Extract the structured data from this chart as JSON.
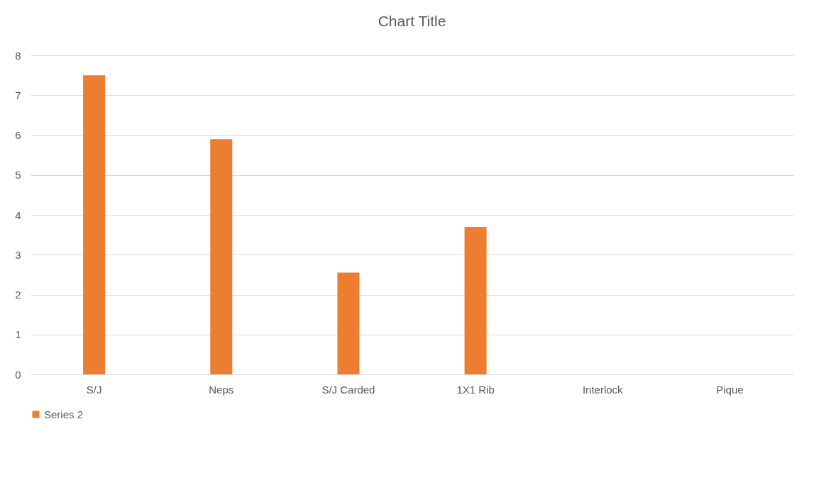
{
  "chart_data": {
    "type": "bar",
    "title": "Chart Title",
    "categories": [
      "S/J",
      "Neps",
      "S/J Carded",
      "1X1 Rib",
      "Interlock",
      "Pique"
    ],
    "series": [
      {
        "name": "Series 2",
        "color": "#ed7d31",
        "values": [
          7.5,
          5.9,
          2.55,
          3.7,
          null,
          null
        ]
      }
    ],
    "ylim": [
      0,
      8
    ],
    "yticks": [
      0,
      1,
      2,
      3,
      4,
      5,
      6,
      7,
      8
    ],
    "grid": "y",
    "legend": "bottom"
  }
}
